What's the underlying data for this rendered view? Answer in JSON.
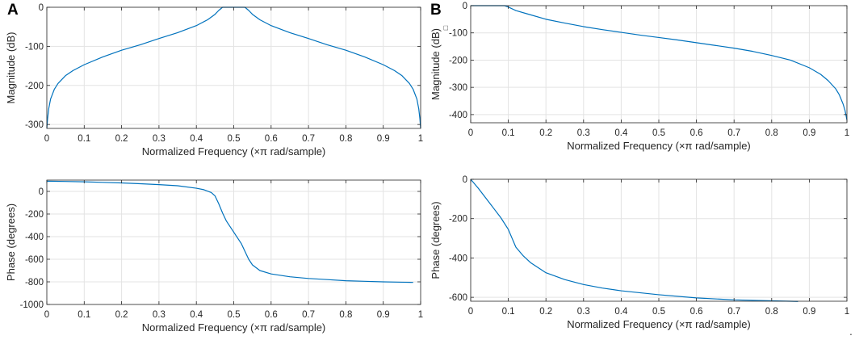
{
  "figure": {
    "panel_labels": [
      "A",
      "B"
    ],
    "stray_mark": "."
  },
  "chart_data": [
    {
      "panel": "A",
      "type": "line",
      "title": "",
      "xlabel": "Normalized Frequency  (×π rad/sample)",
      "ylabel": "Magnitude (dB)",
      "xlim": [
        0,
        1
      ],
      "ylim": [
        -310,
        0
      ],
      "xticks": [
        0,
        0.1,
        0.2,
        0.3,
        0.4,
        0.5,
        0.6,
        0.7,
        0.8,
        0.9,
        1
      ],
      "yticks": [
        -300,
        -200,
        -100,
        0
      ],
      "grid": true,
      "color": "#0072bd",
      "series": [
        {
          "name": "magnitude",
          "x": [
            0,
            0.002,
            0.005,
            0.01,
            0.02,
            0.03,
            0.05,
            0.07,
            0.1,
            0.15,
            0.2,
            0.25,
            0.3,
            0.35,
            0.4,
            0.43,
            0.45,
            0.46,
            0.47,
            0.5,
            0.53,
            0.54,
            0.55,
            0.57,
            0.6,
            0.65,
            0.7,
            0.75,
            0.8,
            0.85,
            0.9,
            0.93,
            0.95,
            0.97,
            0.98,
            0.99,
            0.995,
            0.998,
            1
          ],
          "y": [
            -310,
            -285,
            -260,
            -235,
            -210,
            -195,
            -175,
            -162,
            -147,
            -127,
            -110,
            -96,
            -80,
            -65,
            -47,
            -32,
            -18,
            -8,
            0,
            0,
            0,
            -8,
            -18,
            -32,
            -47,
            -65,
            -80,
            -96,
            -110,
            -127,
            -147,
            -162,
            -175,
            -195,
            -210,
            -235,
            -260,
            -285,
            -310
          ]
        }
      ]
    },
    {
      "panel": "A",
      "type": "line",
      "title": "",
      "xlabel": "Normalized Frequency  (×π rad/sample)",
      "ylabel": "Phase (degrees)",
      "xlim": [
        0,
        1
      ],
      "ylim": [
        -1000,
        100
      ],
      "xticks": [
        0,
        0.1,
        0.2,
        0.3,
        0.4,
        0.5,
        0.6,
        0.7,
        0.8,
        0.9,
        1
      ],
      "yticks": [
        -1000,
        -800,
        -600,
        -400,
        -200,
        0
      ],
      "grid": true,
      "color": "#0072bd",
      "series": [
        {
          "name": "phase",
          "x": [
            0,
            0.05,
            0.1,
            0.15,
            0.2,
            0.25,
            0.3,
            0.35,
            0.4,
            0.42,
            0.44,
            0.45,
            0.46,
            0.47,
            0.48,
            0.5,
            0.52,
            0.53,
            0.54,
            0.55,
            0.57,
            0.6,
            0.65,
            0.7,
            0.75,
            0.8,
            0.85,
            0.9,
            0.95,
            0.98
          ],
          "y": [
            90,
            88,
            85,
            80,
            75,
            68,
            60,
            50,
            28,
            15,
            -10,
            -40,
            -110,
            -190,
            -260,
            -360,
            -460,
            -530,
            -600,
            -650,
            -700,
            -730,
            -755,
            -770,
            -780,
            -790,
            -795,
            -800,
            -803,
            -805
          ]
        }
      ]
    },
    {
      "panel": "B",
      "type": "line",
      "title": "",
      "xlabel": "Normalized Frequency  (×π rad/sample)",
      "ylabel": "Magnitude (dB)",
      "ylabel_marker": "□",
      "xlim": [
        0,
        1
      ],
      "ylim": [
        -430,
        0
      ],
      "xticks": [
        0,
        0.1,
        0.2,
        0.3,
        0.4,
        0.5,
        0.6,
        0.7,
        0.8,
        0.9,
        1
      ],
      "yticks": [
        -400,
        -300,
        -200,
        -100,
        0
      ],
      "grid": true,
      "color": "#0072bd",
      "series": [
        {
          "name": "magnitude",
          "x": [
            0,
            0.05,
            0.09,
            0.1,
            0.12,
            0.15,
            0.2,
            0.25,
            0.3,
            0.35,
            0.4,
            0.45,
            0.5,
            0.55,
            0.6,
            0.65,
            0.7,
            0.75,
            0.8,
            0.85,
            0.9,
            0.93,
            0.95,
            0.97,
            0.98,
            0.99,
            0.995,
            1
          ],
          "y": [
            0,
            0,
            0,
            -5,
            -18,
            -30,
            -50,
            -64,
            -77,
            -88,
            -98,
            -108,
            -117,
            -126,
            -136,
            -146,
            -156,
            -168,
            -183,
            -200,
            -228,
            -252,
            -275,
            -305,
            -328,
            -362,
            -385,
            -420
          ]
        }
      ]
    },
    {
      "panel": "B",
      "type": "line",
      "title": "",
      "xlabel": "Normalized Frequency  (×π rad/sample)",
      "ylabel": "Phase (degrees)",
      "xlim": [
        0,
        1
      ],
      "ylim": [
        -620,
        0
      ],
      "xticks": [
        0,
        0.1,
        0.2,
        0.3,
        0.4,
        0.5,
        0.6,
        0.7,
        0.8,
        0.9,
        1
      ],
      "yticks": [
        -600,
        -400,
        -200,
        0
      ],
      "grid": true,
      "color": "#0072bd",
      "series": [
        {
          "name": "phase",
          "x": [
            0,
            0.02,
            0.04,
            0.06,
            0.08,
            0.1,
            0.11,
            0.12,
            0.14,
            0.16,
            0.2,
            0.25,
            0.3,
            0.35,
            0.4,
            0.5,
            0.6,
            0.7,
            0.8,
            0.85,
            0.87
          ],
          "y": [
            0,
            -45,
            -95,
            -145,
            -195,
            -255,
            -300,
            -345,
            -390,
            -425,
            -475,
            -510,
            -535,
            -553,
            -567,
            -587,
            -603,
            -613,
            -618,
            -620,
            -621
          ]
        }
      ]
    }
  ]
}
